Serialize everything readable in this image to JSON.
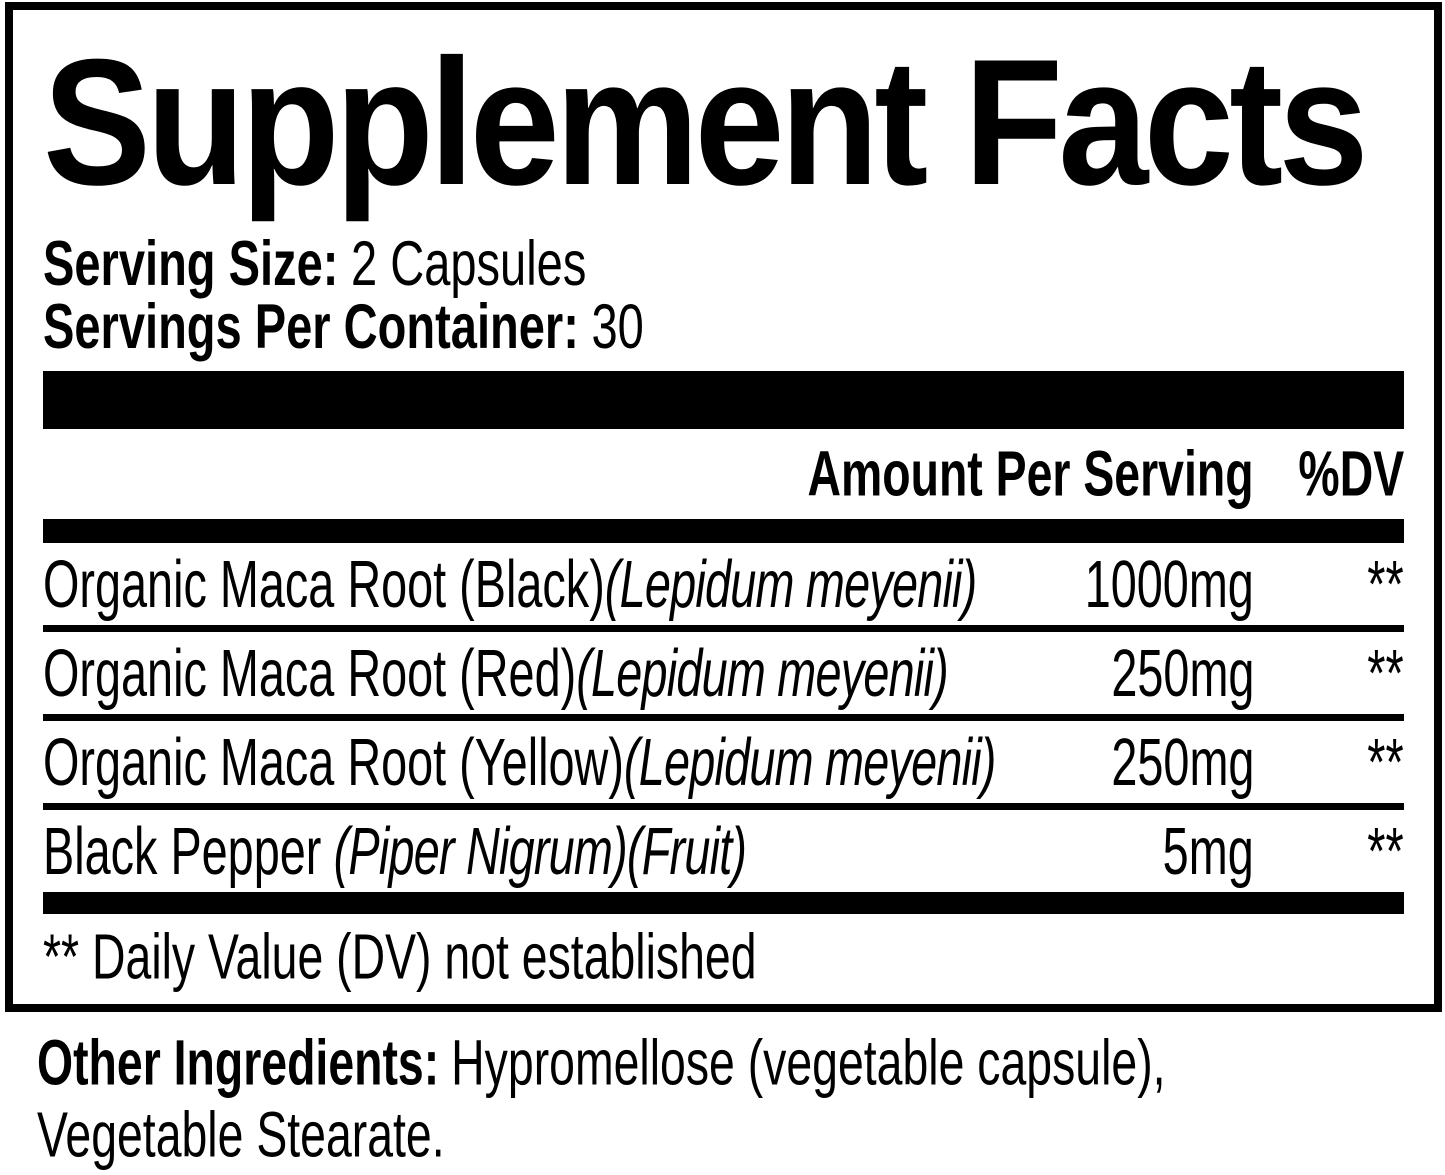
{
  "label": {
    "title": "Supplement Facts",
    "serving": {
      "size_label": "Serving Size:",
      "size_value": "2 Capsules",
      "per_container_label": "Servings Per Container:",
      "per_container_value": "30"
    },
    "table": {
      "amount_header": "Amount Per Serving",
      "dv_header": "%DV",
      "rows": [
        {
          "name": "Organic Maca Root (Black)",
          "latin": "(Lepidum meyenii)",
          "amount": "1000mg",
          "dv": "**"
        },
        {
          "name": "Organic Maca Root (Red)",
          "latin": "(Lepidum meyenii)",
          "amount": "250mg",
          "dv": "**"
        },
        {
          "name": "Organic Maca Root (Yellow)",
          "latin": "(Lepidum meyenii)",
          "amount": "250mg",
          "dv": "**"
        },
        {
          "name": "Black Pepper",
          "latin": " (Piper Nigrum)(Fruit)",
          "amount": "5mg",
          "dv": "**"
        }
      ],
      "footnote": "** Daily Value (DV) not established"
    },
    "other_ingredients": {
      "label": "Other Ingredients:",
      "line1": "Hypromellose (vegetable capsule),",
      "line2": "Vegetable Stearate."
    },
    "colors": {
      "ink": "#000000",
      "background": "#ffffff"
    }
  }
}
